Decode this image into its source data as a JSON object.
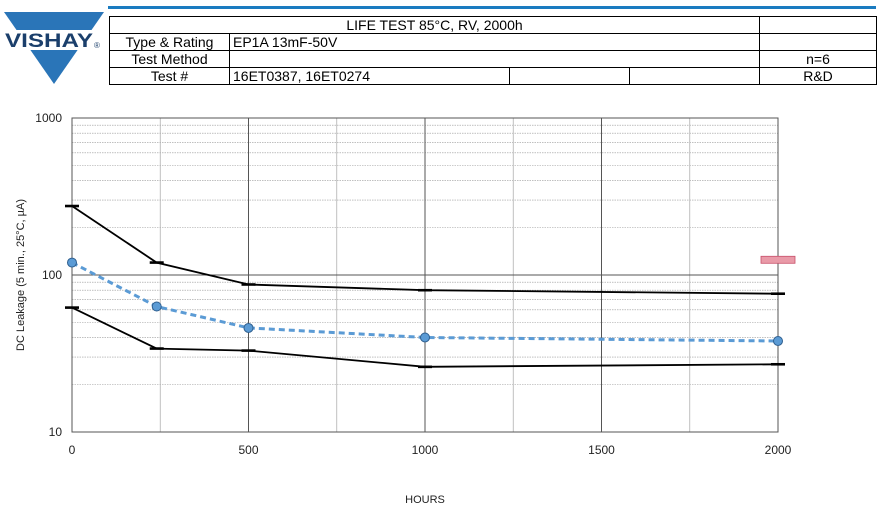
{
  "logo": {
    "text": "VISHAY",
    "mark": "®"
  },
  "header": {
    "title": "LIFE TEST 85°C, RV, 2000h",
    "rows": [
      {
        "label": "Type & Rating",
        "value": "EP1A 13mF-50V",
        "extra": ""
      },
      {
        "label": "Test Method",
        "value": "",
        "extra": "n=6"
      },
      {
        "label": "Test #",
        "value": "16ET0387, 16ET0274",
        "extra": "R&D"
      }
    ]
  },
  "colors": {
    "logo_blue": "#2a75b8",
    "header_rule": "#1a7bc0",
    "mean_line": "#5b9bd5",
    "max_min_line": "#000000",
    "limit_marker": "#e99aa8"
  },
  "chart_data": {
    "type": "line",
    "title": "",
    "xlabel": "HOURS",
    "ylabel": "DC Leakage (5 min., 25°C, µA)",
    "xlim": [
      0,
      2000
    ],
    "ylim": [
      10,
      1000
    ],
    "yscale": "log",
    "x_ticks": [
      0,
      500,
      1000,
      1500,
      2000
    ],
    "y_ticks": [
      10,
      100,
      1000
    ],
    "grid": true,
    "series": [
      {
        "style": "solid-black",
        "x": [
          0,
          240,
          500,
          1000,
          2000
        ],
        "values": [
          275,
          120,
          87,
          80,
          76
        ]
      },
      {
        "style": "dashed-blue-circles",
        "x": [
          0,
          240,
          500,
          1000,
          2000
        ],
        "values": [
          120,
          63,
          46,
          40,
          38
        ]
      },
      {
        "style": "solid-black",
        "x": [
          0,
          240,
          500,
          1000,
          2000
        ],
        "values": [
          62,
          34,
          33,
          26,
          27
        ]
      }
    ],
    "annotations": [
      {
        "type": "limit-marker",
        "x": 2000,
        "y": 125
      }
    ]
  }
}
